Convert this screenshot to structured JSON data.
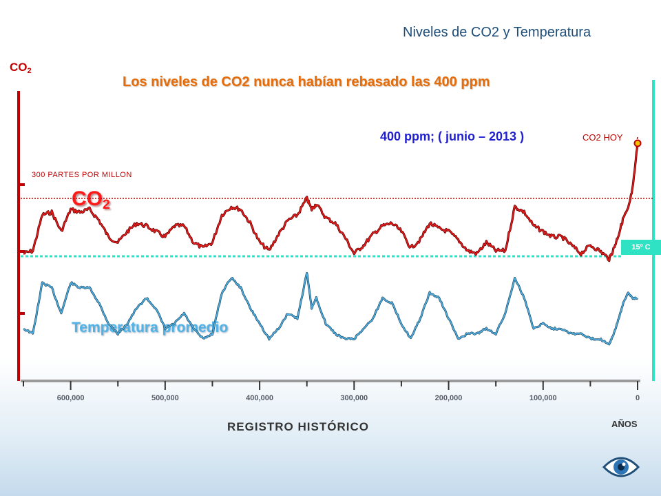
{
  "header": {
    "title": "Niveles de CO2 y Temperatura"
  },
  "colors": {
    "co2": "#c00000",
    "temperature": "#4fb3e8",
    "temperature_band": "#2fe2c4",
    "headline": "#e46c0a"
  },
  "chart_data": {
    "type": "line",
    "title": "Los niveles de CO2 nunca habían rebasado las 400 ppm",
    "ylabel": "CO",
    "ylabel_sub": "2",
    "xlabel": "REGISTRO HISTÓRICO",
    "xunit": "AÑOS",
    "x_reversed": true,
    "xlim": [
      650000,
      0
    ],
    "x_ticks": [
      {
        "value": 600000,
        "label": "600,000"
      },
      {
        "value": 500000,
        "label": "500,000"
      },
      {
        "value": 400000,
        "label": "400,000"
      },
      {
        "value": 300000,
        "label": "300,000"
      },
      {
        "value": 200000,
        "label": "200,000"
      },
      {
        "value": 100000,
        "label": "100,000"
      },
      {
        "value": 0,
        "label": "0"
      }
    ],
    "co2_ylim": [
      170,
      410
    ],
    "reference_line": {
      "value": 300,
      "label": "300 PARTES POR MILLON"
    },
    "temperature_reference": {
      "label": "15º C"
    },
    "annotations": {
      "current": "400 ppm; ( junio – 2013 )",
      "today": "CO2 HOY"
    },
    "series": [
      {
        "name": "CO",
        "name_sub": "2",
        "x": [
          650000,
          640000,
          630000,
          620000,
          610000,
          600000,
          590000,
          580000,
          570000,
          560000,
          550000,
          540000,
          530000,
          520000,
          510000,
          500000,
          490000,
          480000,
          470000,
          460000,
          450000,
          440000,
          430000,
          420000,
          410000,
          400000,
          390000,
          380000,
          370000,
          360000,
          350000,
          345000,
          340000,
          330000,
          320000,
          310000,
          300000,
          290000,
          280000,
          270000,
          260000,
          250000,
          240000,
          230000,
          220000,
          210000,
          200000,
          190000,
          180000,
          170000,
          160000,
          150000,
          140000,
          130000,
          120000,
          110000,
          100000,
          90000,
          80000,
          70000,
          60000,
          50000,
          40000,
          30000,
          25000,
          20000,
          15000,
          10000,
          5000,
          0
        ],
        "values": [
          200,
          205,
          270,
          275,
          240,
          280,
          275,
          280,
          260,
          230,
          220,
          240,
          255,
          250,
          240,
          230,
          250,
          250,
          220,
          210,
          220,
          270,
          285,
          280,
          255,
          220,
          205,
          235,
          260,
          270,
          300,
          280,
          290,
          265,
          255,
          230,
          200,
          215,
          235,
          250,
          255,
          240,
          210,
          225,
          255,
          245,
          240,
          225,
          205,
          200,
          220,
          205,
          205,
          285,
          275,
          250,
          240,
          230,
          230,
          215,
          200,
          215,
          205,
          190,
          210,
          235,
          265,
          280,
          320,
          400
        ]
      },
      {
        "name": "Temperatura promedio",
        "x": [
          650000,
          640000,
          630000,
          620000,
          610000,
          600000,
          590000,
          580000,
          570000,
          560000,
          550000,
          540000,
          530000,
          520000,
          510000,
          500000,
          490000,
          480000,
          470000,
          460000,
          450000,
          440000,
          430000,
          420000,
          410000,
          400000,
          390000,
          380000,
          370000,
          360000,
          350000,
          345000,
          340000,
          330000,
          320000,
          310000,
          300000,
          290000,
          280000,
          270000,
          260000,
          250000,
          240000,
          230000,
          220000,
          210000,
          200000,
          190000,
          180000,
          170000,
          160000,
          150000,
          140000,
          130000,
          120000,
          110000,
          100000,
          90000,
          80000,
          70000,
          60000,
          50000,
          40000,
          30000,
          25000,
          20000,
          15000,
          10000,
          5000,
          0
        ],
        "values": [
          -5,
          -6,
          4,
          3,
          -2,
          4,
          3,
          3,
          0,
          -4,
          -6,
          -4,
          -1,
          1,
          -1,
          -5,
          -4,
          -2,
          -5,
          -7,
          -6,
          2,
          5,
          3,
          -1,
          -4,
          -7,
          -5,
          -2,
          -3,
          6,
          -1,
          1,
          -4,
          -6,
          -7,
          -7,
          -5,
          -3,
          1,
          0,
          -4,
          -7,
          -3,
          2,
          1,
          -3,
          -7,
          -6,
          -6,
          -5,
          -6,
          -2,
          5,
          1,
          -5,
          -4,
          -5,
          -5,
          -6,
          -6,
          -7,
          -7,
          -8,
          -6,
          -3,
          0,
          2,
          1,
          1
        ]
      }
    ]
  }
}
